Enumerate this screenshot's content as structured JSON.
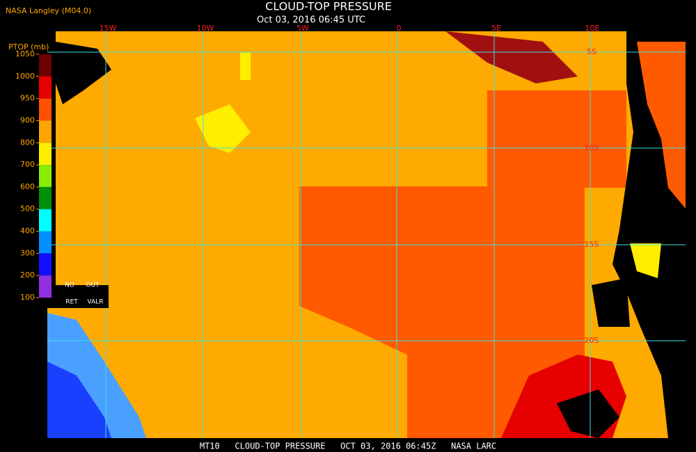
{
  "header": {
    "source": "NASA Langley (M04.0)",
    "title": "CLOUD-TOP PRESSURE",
    "time": "Oct 03, 2016 06:45 UTC"
  },
  "legend": {
    "title": "PTOP (mb)",
    "ticks": [
      1050,
      1000,
      950,
      900,
      800,
      700,
      600,
      500,
      400,
      300,
      200,
      100
    ],
    "colors": [
      "#6e0000",
      "#e60000",
      "#ff5000",
      "#ffa500",
      "#ffee00",
      "#88ee00",
      "#00900a",
      "#00ffff",
      "#0090ff",
      "#1010ff",
      "#9030e0"
    ],
    "keys": [
      "NO",
      "OUT",
      "RET",
      "VALR"
    ]
  },
  "map": {
    "lon_labels": [
      "15W",
      "10W",
      "5W",
      "0",
      "5E",
      "10E"
    ],
    "lat_labels": [
      "5S",
      "10S",
      "15S",
      "20S"
    ]
  },
  "footer": "MT10   CLOUD-TOP PRESSURE   OCT 03, 2016 06:45Z   NASA LARC"
}
